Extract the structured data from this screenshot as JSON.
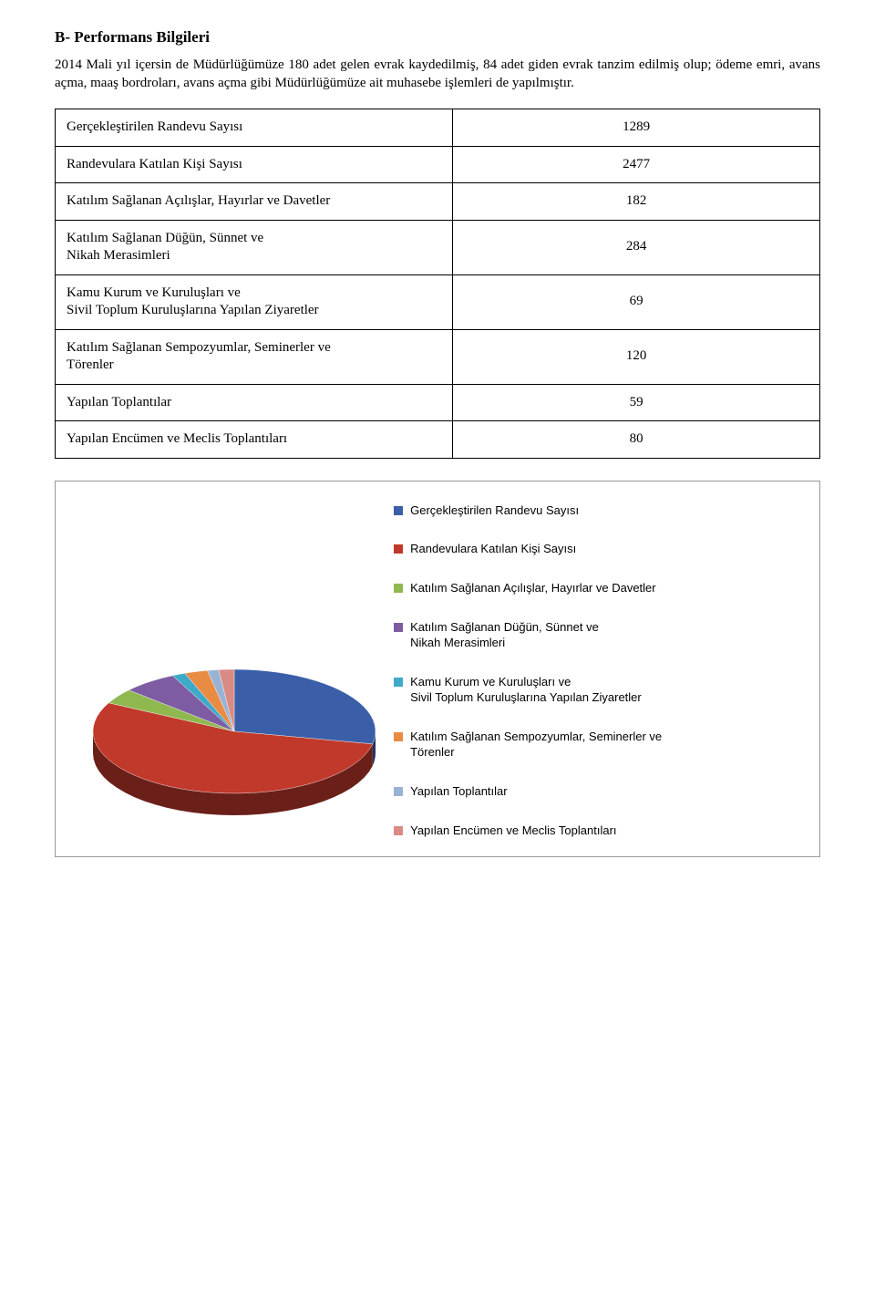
{
  "heading": "B- Performans Bilgileri",
  "intro": "2014 Mali yıl içersin de Müdürlüğümüze 180 adet gelen evrak kaydedilmiş, 84 adet giden evrak tanzim edilmiş olup; ödeme emri, avans açma, maaş bordroları, avans açma gibi Müdürlüğümüze ait muhasebe işlemleri de yapılmıştır.",
  "table": {
    "rows": [
      {
        "label": "Gerçekleştirilen Randevu Sayısı",
        "value": "1289"
      },
      {
        "label": "Randevulara Katılan Kişi Sayısı",
        "value": "2477"
      },
      {
        "label": "Katılım Sağlanan Açılışlar, Hayırlar ve Davetler",
        "value": "182"
      },
      {
        "label": "Katılım Sağlanan Düğün, Sünnet ve\nNikah Merasimleri",
        "value": "284"
      },
      {
        "label": "Kamu Kurum ve Kuruluşları ve\nSivil Toplum Kuruluşlarına Yapılan Ziyaretler",
        "value": "69"
      },
      {
        "label": "Katılım Sağlanan Sempozyumlar, Seminerler ve\nTörenler",
        "value": "120"
      },
      {
        "label": "Yapılan Toplantılar",
        "value": "59"
      },
      {
        "label": "Yapılan Encümen ve Meclis Toplantıları",
        "value": "80"
      }
    ]
  },
  "chart": {
    "type": "pie",
    "background_color": "#ffffff",
    "border_color": "#999999",
    "series": [
      {
        "label": "Gerçekleştirilen Randevu Sayısı",
        "value": 1289,
        "color": "#3a5fa8"
      },
      {
        "label": "Randevulara Katılan Kişi Sayısı",
        "value": 2477,
        "color": "#c0392b"
      },
      {
        "label": "Katılım Sağlanan Açılışlar, Hayırlar ve Davetler",
        "value": 182,
        "color": "#8fb84f"
      },
      {
        "label": "Katılım Sağlanan Düğün, Sünnet ve\nNikah Merasimleri",
        "value": 284,
        "color": "#7e5ca3"
      },
      {
        "label": "Kamu Kurum ve Kuruluşları ve\nSivil Toplum Kuruluşlarına Yapılan Ziyaretler",
        "value": 69,
        "color": "#3fa9c9"
      },
      {
        "label": "Katılım Sağlanan Sempozyumlar, Seminerler ve\nTörenler",
        "value": 120,
        "color": "#e98b43"
      },
      {
        "label": "Yapılan Toplantılar",
        "value": 59,
        "color": "#9ab3d4"
      },
      {
        "label": "Yapılan Encümen ve Meclis Toplantıları",
        "value": 80,
        "color": "#d98a84"
      }
    ],
    "legend_font_family": "Arial",
    "legend_font_size": 13
  }
}
